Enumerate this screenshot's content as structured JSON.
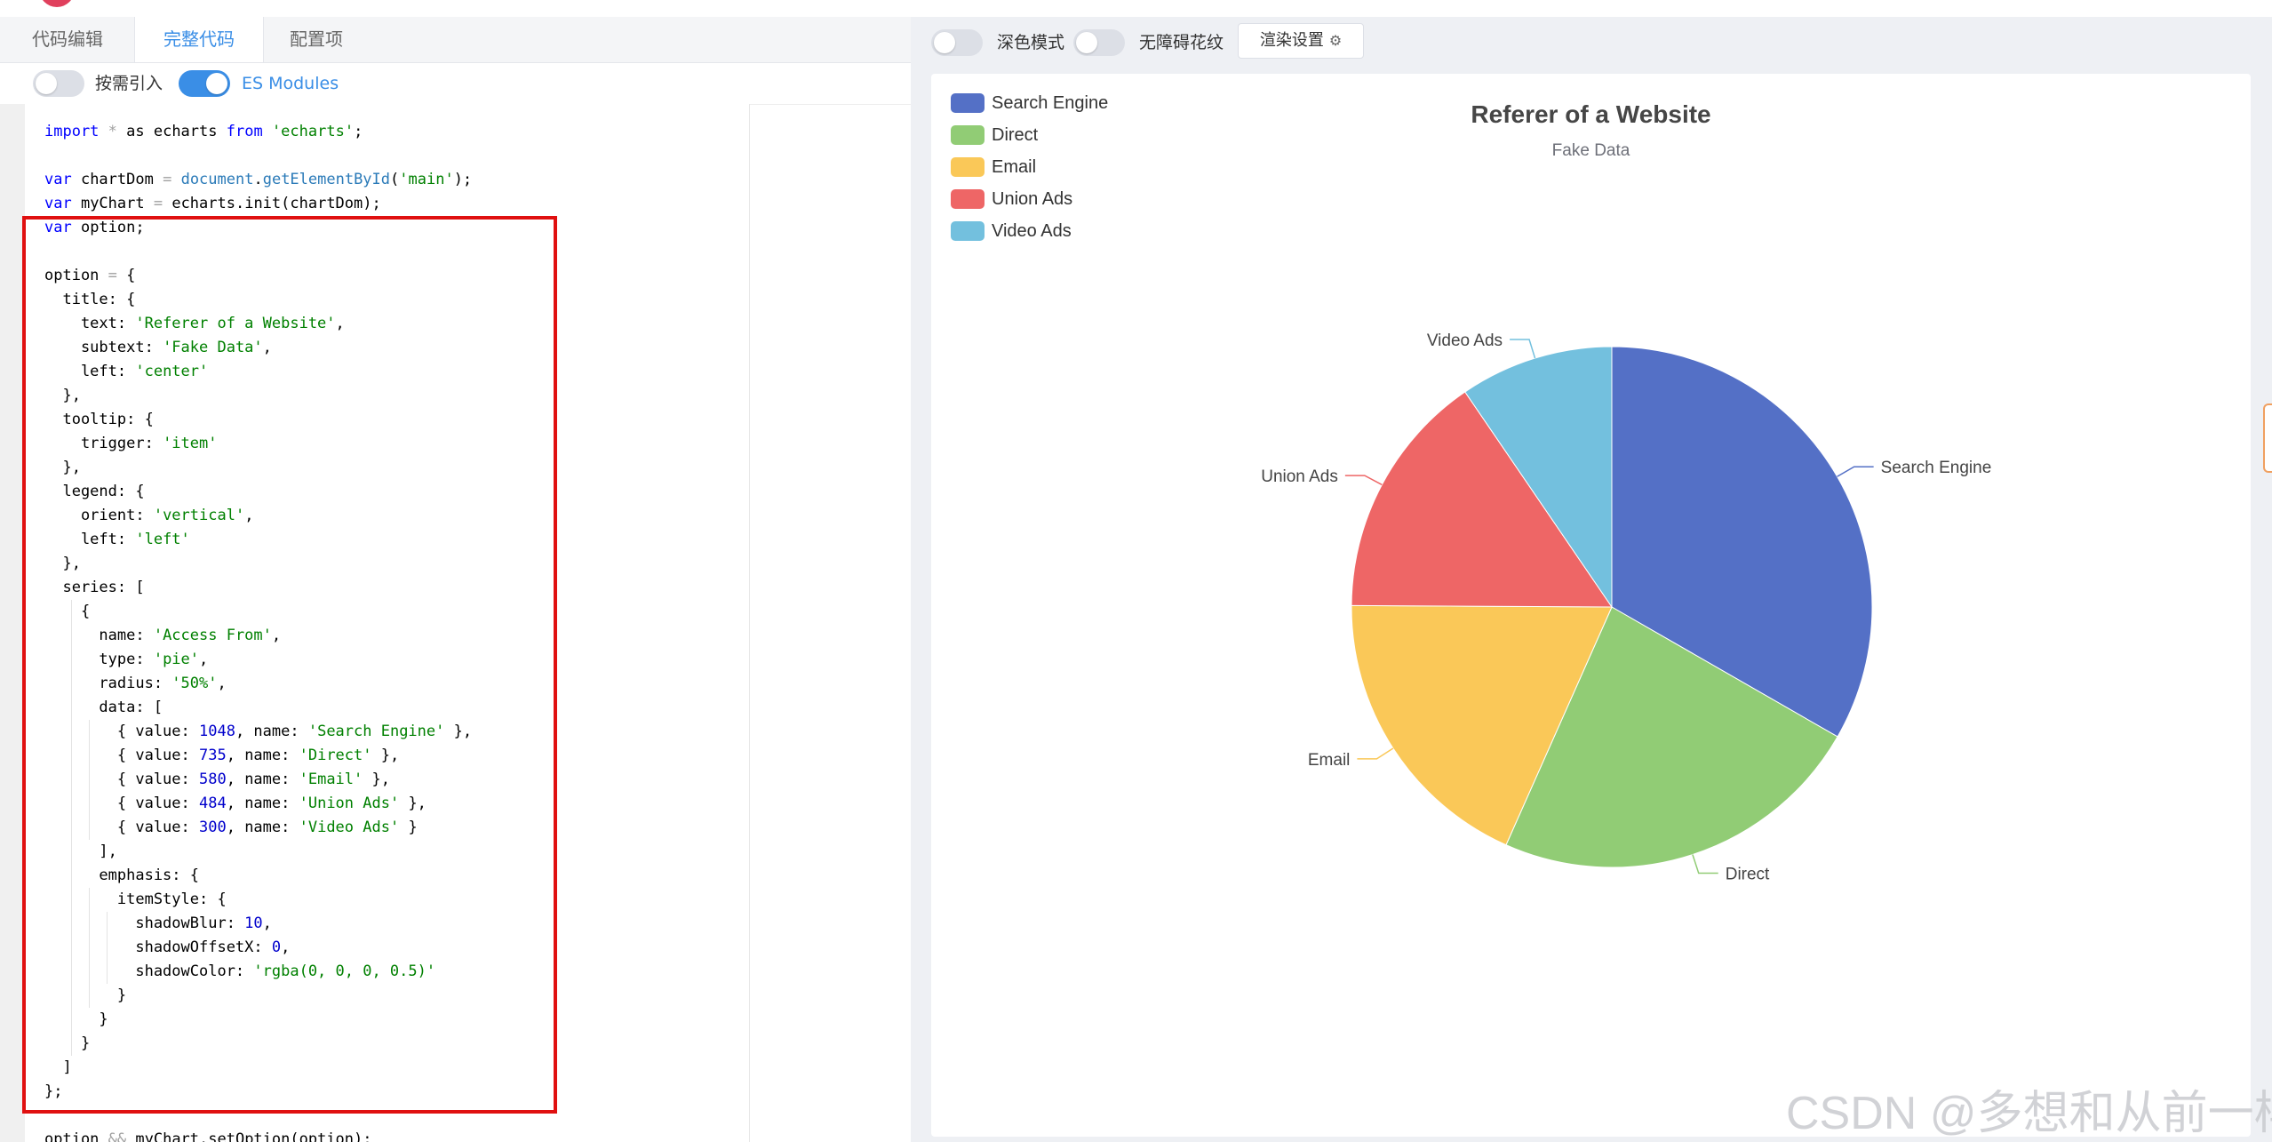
{
  "tabs": [
    {
      "label": "代码编辑"
    },
    {
      "label": "完整代码"
    },
    {
      "label": "配置项"
    }
  ],
  "options": {
    "on_demand_label": "按需引入",
    "on_demand_on": false,
    "es_modules_label": "ES Modules",
    "es_modules_on": true
  },
  "preview_toolbar": {
    "dark_mode_label": "深色模式",
    "dark_mode_on": false,
    "a11y_label": "无障碍花纹",
    "a11y_on": false,
    "render_settings_label": "渲染设置",
    "render_settings_icon": "gear-icon"
  },
  "code_lines": [
    [
      [
        "kw",
        "import"
      ],
      [
        "op",
        " * "
      ],
      [
        "t",
        "as echarts "
      ],
      [
        "kw",
        "from"
      ],
      [
        "t",
        " "
      ],
      [
        "str",
        "'echarts'"
      ],
      [
        "t",
        ";"
      ]
    ],
    [],
    [
      [
        "kw",
        "var"
      ],
      [
        "t",
        " chartDom "
      ],
      [
        "op",
        "="
      ],
      [
        "t",
        " "
      ],
      [
        "fn",
        "document"
      ],
      [
        "t",
        "."
      ],
      [
        "fn",
        "getElementById"
      ],
      [
        "t",
        "("
      ],
      [
        "str",
        "'main'"
      ],
      [
        "t",
        ");"
      ]
    ],
    [
      [
        "kw",
        "var"
      ],
      [
        "t",
        " myChart "
      ],
      [
        "op",
        "="
      ],
      [
        "t",
        " echarts.init(chartDom);"
      ]
    ],
    [
      [
        "kw",
        "var"
      ],
      [
        "t",
        " option;"
      ]
    ],
    [],
    [
      [
        "t",
        "option "
      ],
      [
        "op",
        "="
      ],
      [
        "t",
        " {"
      ]
    ],
    [
      [
        "t",
        "  title: {"
      ]
    ],
    [
      [
        "t",
        "    text: "
      ],
      [
        "str",
        "'Referer of a Website'"
      ],
      [
        "t",
        ","
      ]
    ],
    [
      [
        "t",
        "    subtext: "
      ],
      [
        "str",
        "'Fake Data'"
      ],
      [
        "t",
        ","
      ]
    ],
    [
      [
        "t",
        "    left: "
      ],
      [
        "str",
        "'center'"
      ]
    ],
    [
      [
        "t",
        "  },"
      ]
    ],
    [
      [
        "t",
        "  tooltip: {"
      ]
    ],
    [
      [
        "t",
        "    trigger: "
      ],
      [
        "str",
        "'item'"
      ]
    ],
    [
      [
        "t",
        "  },"
      ]
    ],
    [
      [
        "t",
        "  legend: {"
      ]
    ],
    [
      [
        "t",
        "    orient: "
      ],
      [
        "str",
        "'vertical'"
      ],
      [
        "t",
        ","
      ]
    ],
    [
      [
        "t",
        "    left: "
      ],
      [
        "str",
        "'left'"
      ]
    ],
    [
      [
        "t",
        "  },"
      ]
    ],
    [
      [
        "t",
        "  series: ["
      ]
    ],
    [
      [
        "t",
        "    {"
      ]
    ],
    [
      [
        "t",
        "      name: "
      ],
      [
        "str",
        "'Access From'"
      ],
      [
        "t",
        ","
      ]
    ],
    [
      [
        "t",
        "      type: "
      ],
      [
        "str",
        "'pie'"
      ],
      [
        "t",
        ","
      ]
    ],
    [
      [
        "t",
        "      radius: "
      ],
      [
        "str",
        "'50%'"
      ],
      [
        "t",
        ","
      ]
    ],
    [
      [
        "t",
        "      data: ["
      ]
    ],
    [
      [
        "t",
        "        { value: "
      ],
      [
        "num",
        "1048"
      ],
      [
        "t",
        ", name: "
      ],
      [
        "str",
        "'Search Engine'"
      ],
      [
        "t",
        " },"
      ]
    ],
    [
      [
        "t",
        "        { value: "
      ],
      [
        "num",
        "735"
      ],
      [
        "t",
        ", name: "
      ],
      [
        "str",
        "'Direct'"
      ],
      [
        "t",
        " },"
      ]
    ],
    [
      [
        "t",
        "        { value: "
      ],
      [
        "num",
        "580"
      ],
      [
        "t",
        ", name: "
      ],
      [
        "str",
        "'Email'"
      ],
      [
        "t",
        " },"
      ]
    ],
    [
      [
        "t",
        "        { value: "
      ],
      [
        "num",
        "484"
      ],
      [
        "t",
        ", name: "
      ],
      [
        "str",
        "'Union Ads'"
      ],
      [
        "t",
        " },"
      ]
    ],
    [
      [
        "t",
        "        { value: "
      ],
      [
        "num",
        "300"
      ],
      [
        "t",
        ", name: "
      ],
      [
        "str",
        "'Video Ads'"
      ],
      [
        "t",
        " }"
      ]
    ],
    [
      [
        "t",
        "      ],"
      ]
    ],
    [
      [
        "t",
        "      emphasis: {"
      ]
    ],
    [
      [
        "t",
        "        itemStyle: {"
      ]
    ],
    [
      [
        "t",
        "          shadowBlur: "
      ],
      [
        "num",
        "10"
      ],
      [
        "t",
        ","
      ]
    ],
    [
      [
        "t",
        "          shadowOffsetX: "
      ],
      [
        "num",
        "0"
      ],
      [
        "t",
        ","
      ]
    ],
    [
      [
        "t",
        "          shadowColor: "
      ],
      [
        "str",
        "'rgba(0, 0, 0, 0.5)'"
      ]
    ],
    [
      [
        "t",
        "        }"
      ]
    ],
    [
      [
        "t",
        "      }"
      ]
    ],
    [
      [
        "t",
        "    }"
      ]
    ],
    [
      [
        "t",
        "  ]"
      ]
    ],
    [
      [
        "t",
        "};"
      ]
    ],
    [],
    [
      [
        "t",
        "option "
      ],
      [
        "op",
        "&&"
      ],
      [
        "t",
        " myChart.setOption(option);"
      ]
    ]
  ],
  "chart_data": {
    "type": "pie",
    "title": "Referer of a Website",
    "subtitle": "Fake Data",
    "legend_position": "left",
    "legend_orient": "vertical",
    "radius": "50%",
    "series_name": "Access From",
    "slices": [
      {
        "name": "Search Engine",
        "value": 1048,
        "color": "#5470c6"
      },
      {
        "name": "Direct",
        "value": 735,
        "color": "#91cc75"
      },
      {
        "name": "Email",
        "value": 580,
        "color": "#fac858"
      },
      {
        "name": "Union Ads",
        "value": 484,
        "color": "#ee6666"
      },
      {
        "name": "Video Ads",
        "value": 300,
        "color": "#73c0de"
      }
    ]
  },
  "watermark": "CSDN @多想和从前一样"
}
